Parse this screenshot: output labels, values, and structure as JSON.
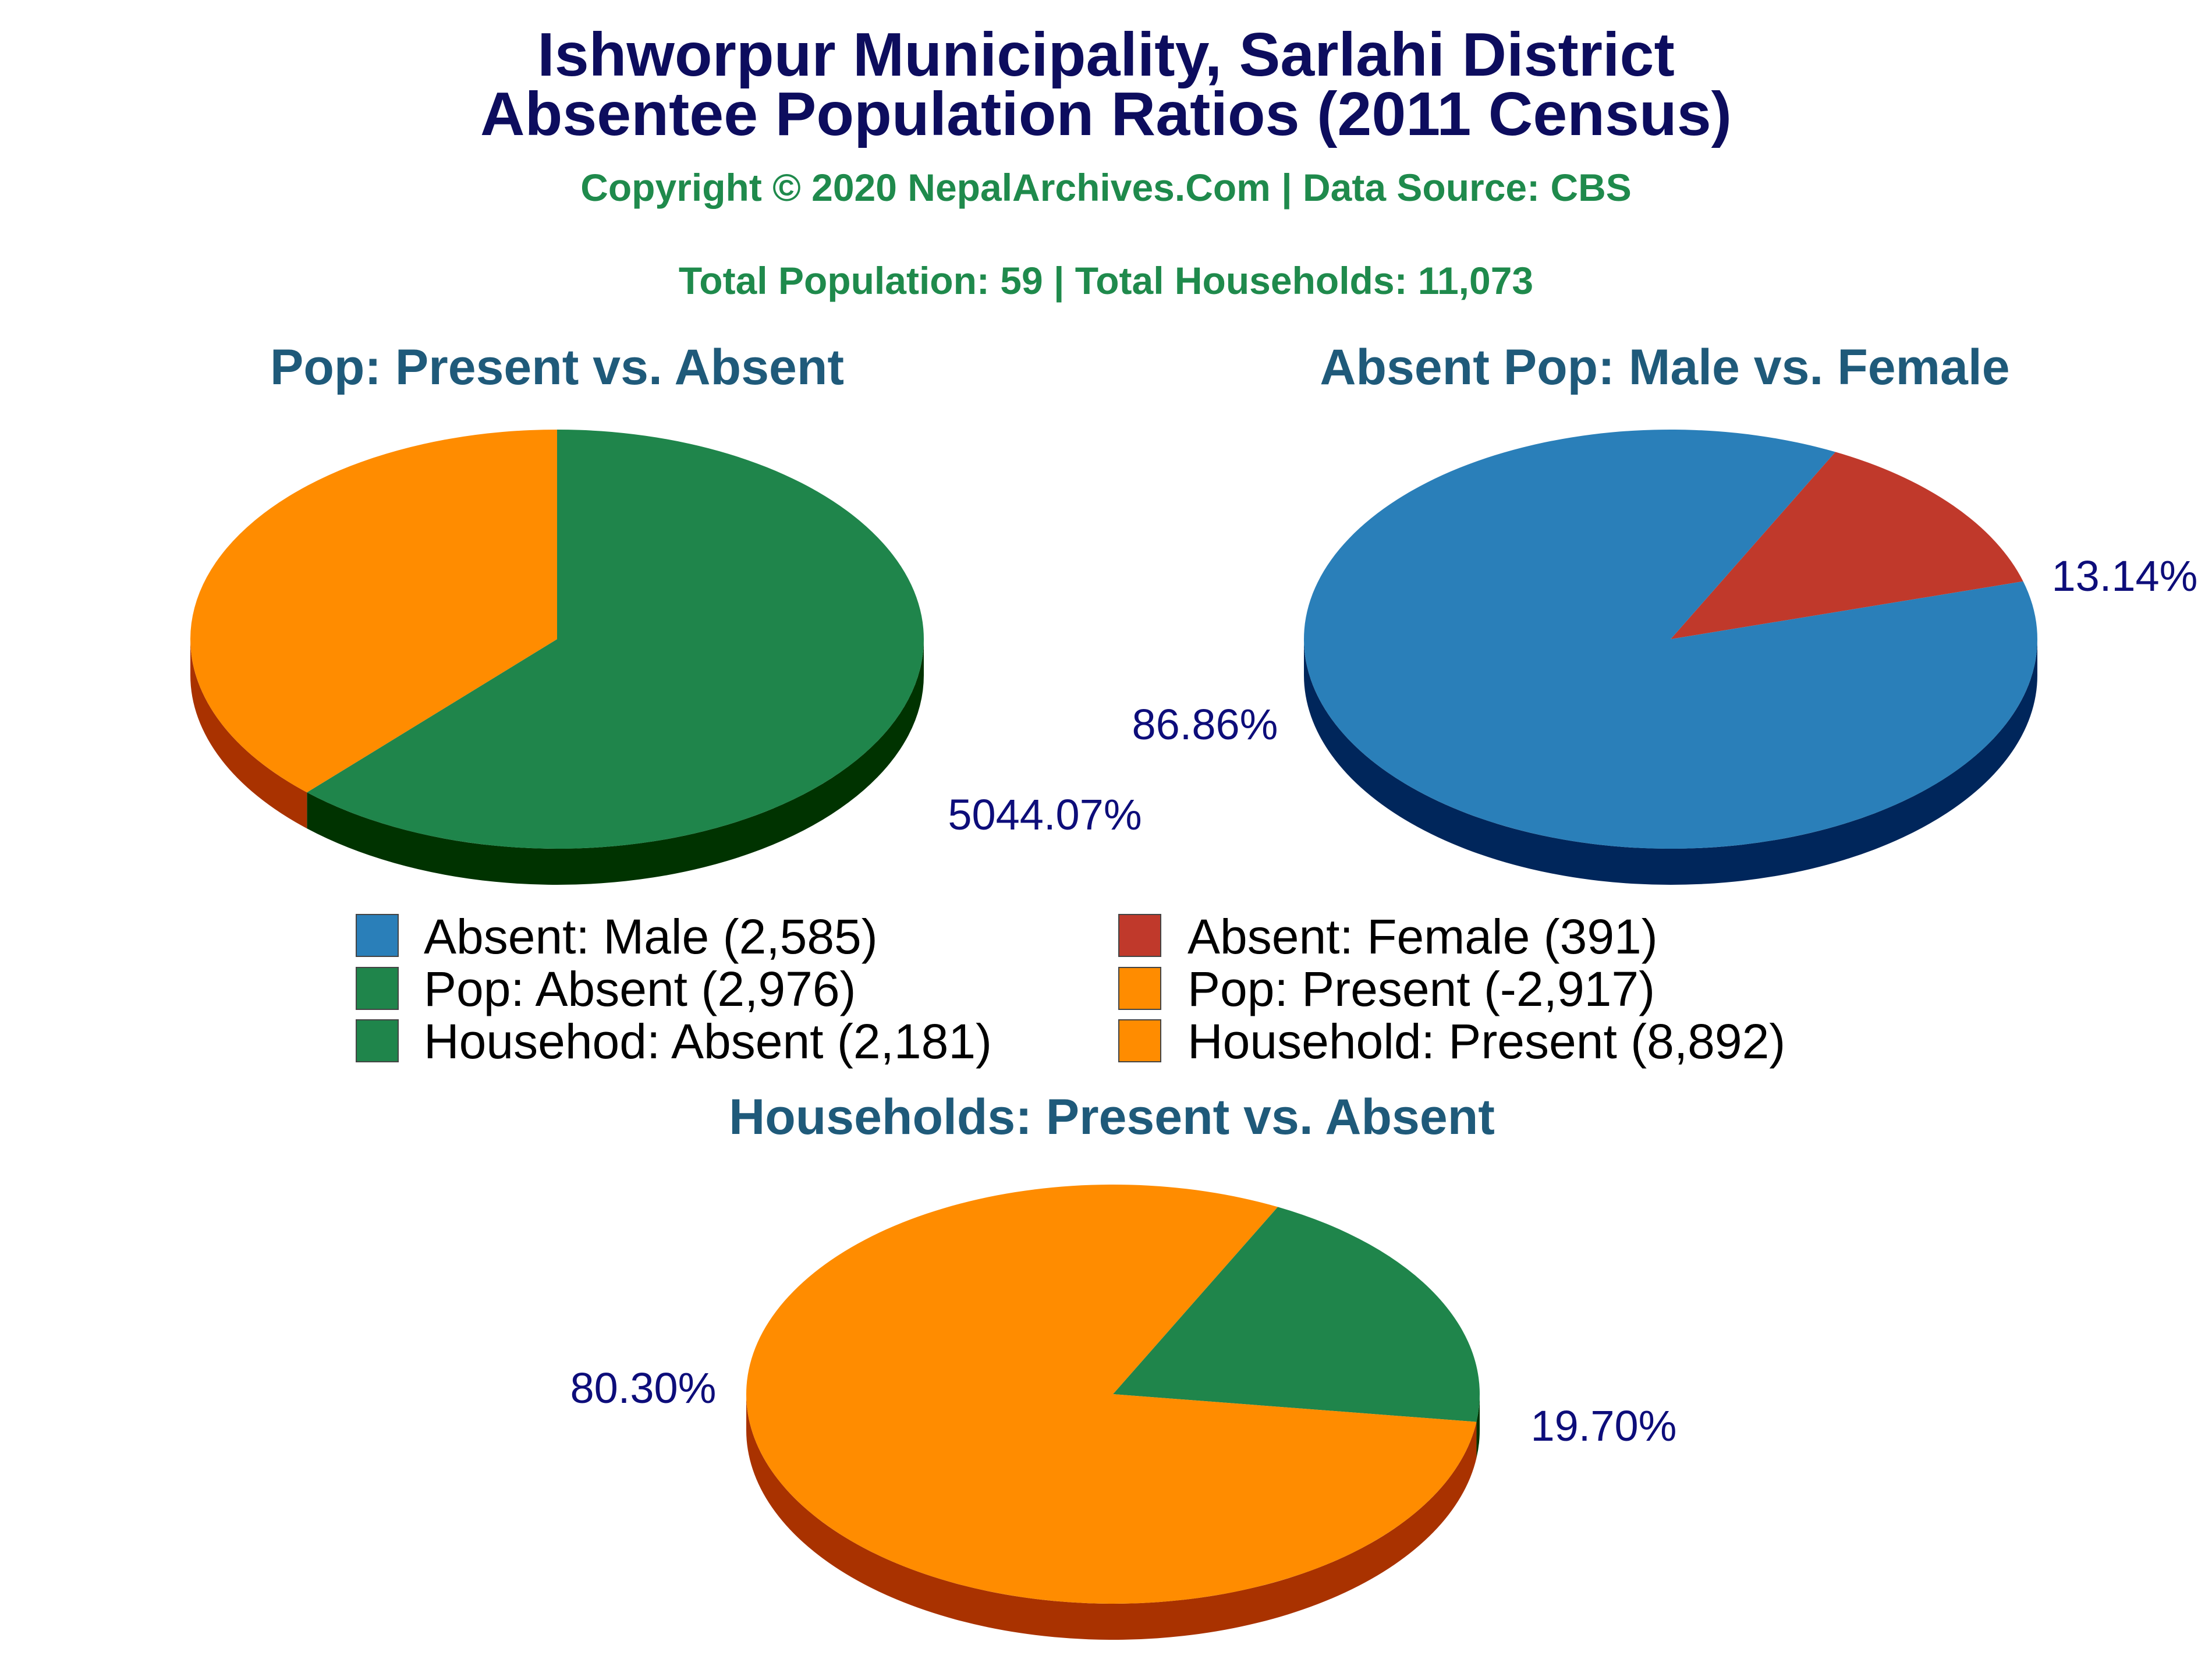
{
  "header": {
    "title_line1": "Ishworpur Municipality, Sarlahi District",
    "title_line2": "Absentee Population Ratios (2011 Census)",
    "copyright": "Copyright © 2020 NepalArchives.Com | Data Source: CBS",
    "totals": "Total Population: 59 | Total Households: 11,073"
  },
  "colors": {
    "green": "#1f854b",
    "green_side": "#003300",
    "orange": "#ff8c00",
    "orange_side": "#a93200",
    "blue": "#2a7fb9",
    "blue_side": "#00265b",
    "red": "#c0392b",
    "red_side": "#6b0000"
  },
  "legend": [
    {
      "label": "Absent: Male (2,585)",
      "color": "#2a7fb9"
    },
    {
      "label": "Absent: Female (391)",
      "color": "#c0392b"
    },
    {
      "label": "Pop: Absent (2,976)",
      "color": "#1f854b"
    },
    {
      "label": "Pop: Present (-2,917)",
      "color": "#ff8c00"
    },
    {
      "label": "Househod: Absent (2,181)",
      "color": "#1f854b"
    },
    {
      "label": "Household: Present (8,892)",
      "color": "#ff8c00"
    }
  ],
  "chart_data": [
    {
      "type": "pie",
      "title": "Pop: Present vs. Absent",
      "slices": [
        {
          "name": "Pop: Absent",
          "value": 2976,
          "percent_label": "5044.07%",
          "color": "#1f854b",
          "side_color": "#003300"
        },
        {
          "name": "Pop: Present",
          "value": -2917,
          "percent_label": "",
          "color": "#ff8c00",
          "side_color": "#a93200"
        }
      ]
    },
    {
      "type": "pie",
      "title": "Absent Pop: Male vs. Female",
      "slices": [
        {
          "name": "Absent: Female",
          "value": 391,
          "percent_label": "13.14%",
          "color": "#c0392b",
          "side_color": "#6b0000"
        },
        {
          "name": "Absent: Male",
          "value": 2585,
          "percent_label": "86.86%",
          "color": "#2a7fb9",
          "side_color": "#00265b"
        }
      ]
    },
    {
      "type": "pie",
      "title": "Households: Present vs. Absent",
      "slices": [
        {
          "name": "Househod: Absent",
          "value": 2181,
          "percent_label": "19.70%",
          "color": "#1f854b",
          "side_color": "#003300"
        },
        {
          "name": "Household: Present",
          "value": 8892,
          "percent_label": "80.30%",
          "color": "#ff8c00",
          "side_color": "#a93200"
        }
      ]
    }
  ]
}
